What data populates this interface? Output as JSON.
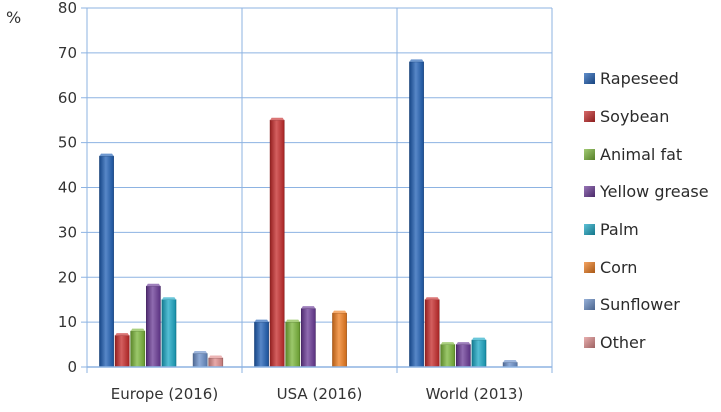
{
  "chart_data": {
    "type": "bar",
    "ylabel": "%",
    "ylim": [
      0,
      80
    ],
    "yticks": [
      0,
      10,
      20,
      30,
      40,
      50,
      60,
      70,
      80
    ],
    "grid": true,
    "legend_position": "right",
    "categories": [
      "Europe (2016)",
      "USA (2016)",
      "World (2013)"
    ],
    "series": [
      {
        "name": "Rapeseed",
        "color": "#1f5fb5",
        "values": [
          47,
          10,
          68
        ]
      },
      {
        "name": "Soybean",
        "color": "#c62a2a",
        "values": [
          7,
          55,
          15
        ]
      },
      {
        "name": "Animal fat",
        "color": "#7ab539",
        "values": [
          8,
          10,
          5
        ]
      },
      {
        "name": "Yellow grease",
        "color": "#6a3a96",
        "values": [
          18,
          13,
          5
        ]
      },
      {
        "name": "Palm",
        "color": "#1aa7c4",
        "values": [
          15,
          0,
          6
        ]
      },
      {
        "name": "Corn",
        "color": "#f07d1e",
        "values": [
          0,
          12,
          0
        ]
      },
      {
        "name": "Sunflower",
        "color": "#6a8fc9",
        "values": [
          3,
          0,
          1
        ]
      },
      {
        "name": "Other",
        "color": "#e08c8c",
        "values": [
          2,
          0,
          0
        ]
      }
    ]
  }
}
